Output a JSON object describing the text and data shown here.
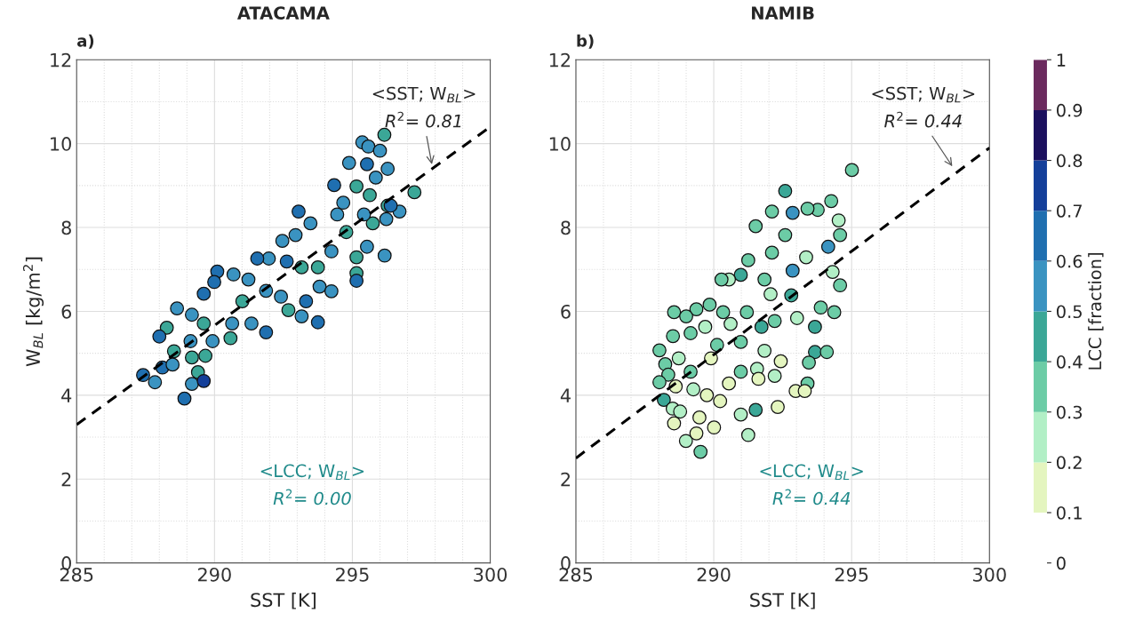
{
  "chart_data": [
    {
      "type": "scatter",
      "title": "ATACAMA",
      "subtitle": "a)",
      "xlabel": "SST [K]",
      "ylabel": "W$_{BL}$ [kg/m$^{2}$]",
      "xlim": [
        285,
        300
      ],
      "xticks": [
        285,
        290,
        295,
        300
      ],
      "ylim": [
        0,
        12
      ],
      "yticks": [
        0,
        2,
        4,
        6,
        8,
        10,
        12
      ],
      "grid": true,
      "series": [
        {
          "marker": "circle",
          "x": [
            296.16,
            295.36,
            295.58,
            296.0,
            294.88,
            295.53,
            296.28,
            295.85,
            297.25,
            294.34,
            295.15,
            295.63,
            296.28,
            294.67,
            293.05,
            296.71,
            294.78,
            295.74,
            296.23,
            296.17,
            295.15,
            295.15,
            295.15,
            295.53,
            294.24,
            293.48,
            292.94,
            292.46,
            293.75,
            293.16,
            293.81,
            294.24,
            292.62,
            291.97,
            291.55,
            290.69,
            290.1,
            289.99,
            289.61,
            291.01,
            291.87,
            292.41,
            292.68,
            293.32,
            293.16,
            293.75,
            291.87,
            291.34,
            290.64,
            289.61,
            289.18,
            288.64,
            288.27,
            288.0,
            288.53,
            289.18,
            289.67,
            290.58,
            289.93,
            288.11,
            288.48,
            289.4,
            289.18,
            289.61,
            287.41,
            287.84,
            288.91,
            289.13,
            291.23,
            294.45,
            295.42,
            296.39
          ],
          "values": [
            10.21,
            10.03,
            9.93,
            9.83,
            9.54,
            9.51,
            9.4,
            9.19,
            8.84,
            9.01,
            8.98,
            8.77,
            8.52,
            8.59,
            8.38,
            8.38,
            7.89,
            8.1,
            8.2,
            7.33,
            7.29,
            6.91,
            6.73,
            7.54,
            7.43,
            8.1,
            7.82,
            7.68,
            7.05,
            7.05,
            6.59,
            6.48,
            7.19,
            7.26,
            7.26,
            6.88,
            6.95,
            6.7,
            6.42,
            6.24,
            6.49,
            6.35,
            6.03,
            6.24,
            5.88,
            5.74,
            5.5,
            5.71,
            5.71,
            5.71,
            5.92,
            6.07,
            5.61,
            5.4,
            5.05,
            4.9,
            4.94,
            5.36,
            5.29,
            4.66,
            4.73,
            4.55,
            4.27,
            4.34,
            4.48,
            4.31,
            3.92,
            5.29,
            6.76,
            8.31,
            8.31,
            8.52
          ],
          "colors": [
            "#3ba797",
            "#3a93c1",
            "#3a93c1",
            "#3a93c1",
            "#3a93c1",
            "#1f6fb0",
            "#3a93c1",
            "#3a93c1",
            "#3ba797",
            "#1f6fb0",
            "#3ba797",
            "#3ba797",
            "#3ba797",
            "#3a93c1",
            "#1f6fb0",
            "#3a93c1",
            "#3ba797",
            "#3ba797",
            "#3a93c1",
            "#3a93c1",
            "#3ba797",
            "#3ba797",
            "#1f6fb0",
            "#3a93c1",
            "#3a93c1",
            "#3a93c1",
            "#3a93c1",
            "#3a93c1",
            "#3ba797",
            "#3ba797",
            "#3a93c1",
            "#3a93c1",
            "#1f6fb0",
            "#3a93c1",
            "#1f6fb0",
            "#3a93c1",
            "#1f6fb0",
            "#1f6fb0",
            "#1f6fb0",
            "#3ba797",
            "#3a93c1",
            "#3a93c1",
            "#3ba797",
            "#1f6fb0",
            "#3a93c1",
            "#1f6fb0",
            "#1f6fb0",
            "#3a93c1",
            "#3a93c1",
            "#3ba797",
            "#3a93c1",
            "#3a93c1",
            "#3ba797",
            "#1f6fb0",
            "#3ba797",
            "#3ba797",
            "#3ba797",
            "#3ba797",
            "#3a93c1",
            "#1f6fb0",
            "#3a93c1",
            "#3ba797",
            "#3a93c1",
            "#143f9a",
            "#1f6fb0",
            "#3a93c1",
            "#1f6fb0",
            "#3a93c1",
            "#3a93c1",
            "#3a93c1",
            "#3a93c1",
            "#1f6fb0"
          ]
        },
        {
          "type": "line",
          "x": [
            285,
            300
          ],
          "values": [
            3.3,
            10.4
          ],
          "color": "#000000",
          "line_style": "dashed"
        }
      ],
      "annotations": [
        "<SST; W$_{BL}$>",
        {
          "text": "R$^{2}$= 0.81",
          "x": 297.9,
          "y": 9.45
        },
        "<LCC; W$_{BL}$>",
        "R$^{2}$= 0.00"
      ]
    },
    {
      "type": "scatter",
      "title": "NAMIB",
      "subtitle": "b)",
      "xlabel": "SST [K]",
      "clabel": "LCC [fraction]",
      "xlim": [
        285,
        300
      ],
      "xticks": [
        285,
        290,
        295,
        300
      ],
      "ylim": [
        0,
        12
      ],
      "yticks": [
        0,
        2,
        4,
        6,
        8,
        10,
        12
      ],
      "grid": true,
      "clim": [
        0,
        1
      ],
      "cticks": [
        0,
        0.1,
        0.2,
        0.3,
        0.4,
        0.5,
        0.6,
        0.7,
        0.8,
        0.9,
        1
      ],
      "series": [
        {
          "marker": "circle",
          "x": [
            295.01,
            292.59,
            294.26,
            294.53,
            292.86,
            292.11,
            291.52,
            293.77,
            293.4,
            294.15,
            294.58,
            292.59,
            292.11,
            292.86,
            291.25,
            290.98,
            290.55,
            290.28,
            293.35,
            294.31,
            294.58,
            291.84,
            292.06,
            292.81,
            294.37,
            293.88,
            293.67,
            292.21,
            293.02,
            291.73,
            291.2,
            290.34,
            289.85,
            289.37,
            288.56,
            289.0,
            288.52,
            289.16,
            289.69,
            290.61,
            290.98,
            290.12,
            291.84,
            293.67,
            294.1,
            293.45,
            292.43,
            289.9,
            288.24,
            288.73,
            288.35,
            289.16,
            290.98,
            291.57,
            291.62,
            292.21,
            290.55,
            288.03,
            288.19,
            288.62,
            289.26,
            289.75,
            290.23,
            288.51,
            288.78,
            290.98,
            291.52,
            292.32,
            293.4,
            292.97,
            293.3,
            289.48,
            290.01,
            291.25,
            288.99,
            289.52,
            288.56,
            289.37,
            288.03
          ],
          "values": [
            9.37,
            8.87,
            8.63,
            8.17,
            8.35,
            8.38,
            8.03,
            8.42,
            8.45,
            7.54,
            7.82,
            7.82,
            7.4,
            6.97,
            7.22,
            6.87,
            6.76,
            6.76,
            7.29,
            6.94,
            6.62,
            6.76,
            6.41,
            6.38,
            5.98,
            6.09,
            5.63,
            5.77,
            5.84,
            5.63,
            5.98,
            5.98,
            6.16,
            6.05,
            5.98,
            5.88,
            5.41,
            5.48,
            5.63,
            5.7,
            5.27,
            5.2,
            5.06,
            5.03,
            5.03,
            4.78,
            4.81,
            4.88,
            4.74,
            4.88,
            4.49,
            4.56,
            4.56,
            4.63,
            4.39,
            4.46,
            4.28,
            4.31,
            3.89,
            4.21,
            4.14,
            4.0,
            3.86,
            3.68,
            3.61,
            3.54,
            3.65,
            3.72,
            4.28,
            4.1,
            4.1,
            3.47,
            3.23,
            3.05,
            2.91,
            2.65,
            3.33,
            3.09,
            5.07
          ],
          "colors": [
            "#6ccca6",
            "#3ba797",
            "#6ccca6",
            "#b2efc6",
            "#3a93c1",
            "#6ccca6",
            "#6ccca6",
            "#6ccca6",
            "#6ccca6",
            "#3a93c1",
            "#6ccca6",
            "#6ccca6",
            "#6ccca6",
            "#3a93c1",
            "#6ccca6",
            "#3ba797",
            "#b2efc6",
            "#6ccca6",
            "#b2efc6",
            "#b2efc6",
            "#6ccca6",
            "#6ccca6",
            "#b2efc6",
            "#3ba797",
            "#6ccca6",
            "#6ccca6",
            "#3ba797",
            "#6ccca6",
            "#b2efc6",
            "#3ba797",
            "#6ccca6",
            "#6ccca6",
            "#6ccca6",
            "#6ccca6",
            "#6ccca6",
            "#6ccca6",
            "#6ccca6",
            "#6ccca6",
            "#b2efc6",
            "#b2efc6",
            "#6ccca6",
            "#6ccca6",
            "#b2efc6",
            "#3ba797",
            "#6ccca6",
            "#6ccca6",
            "#e4f5bf",
            "#e4f5bf",
            "#6ccca6",
            "#b2efc6",
            "#6ccca6",
            "#6ccca6",
            "#6ccca6",
            "#b2efc6",
            "#e4f5bf",
            "#b2efc6",
            "#e4f5bf",
            "#6ccca6",
            "#3ba797",
            "#e4f5bf",
            "#b2efc6",
            "#e4f5bf",
            "#e4f5bf",
            "#b2efc6",
            "#b2efc6",
            "#b2efc6",
            "#3ba797",
            "#e4f5bf",
            "#6ccca6",
            "#e4f5bf",
            "#e4f5bf",
            "#e4f5bf",
            "#e4f5bf",
            "#b2efc6",
            "#b2efc6",
            "#6ccca6",
            "#e4f5bf",
            "#e4f5bf",
            "#6ccca6"
          ]
        },
        {
          "type": "line",
          "x": [
            285,
            300
          ],
          "values": [
            2.5,
            9.9
          ],
          "color": "#000000",
          "line_style": "dashed"
        }
      ],
      "annotations": [
        "<SST; W$_{BL}$>",
        {
          "text": "R$^{2}$= 0.44",
          "x": 298.7,
          "y": 9.41
        },
        "<LCC; W$_{BL}$>",
        "R$^{2}$= 0.44"
      ]
    }
  ]
}
